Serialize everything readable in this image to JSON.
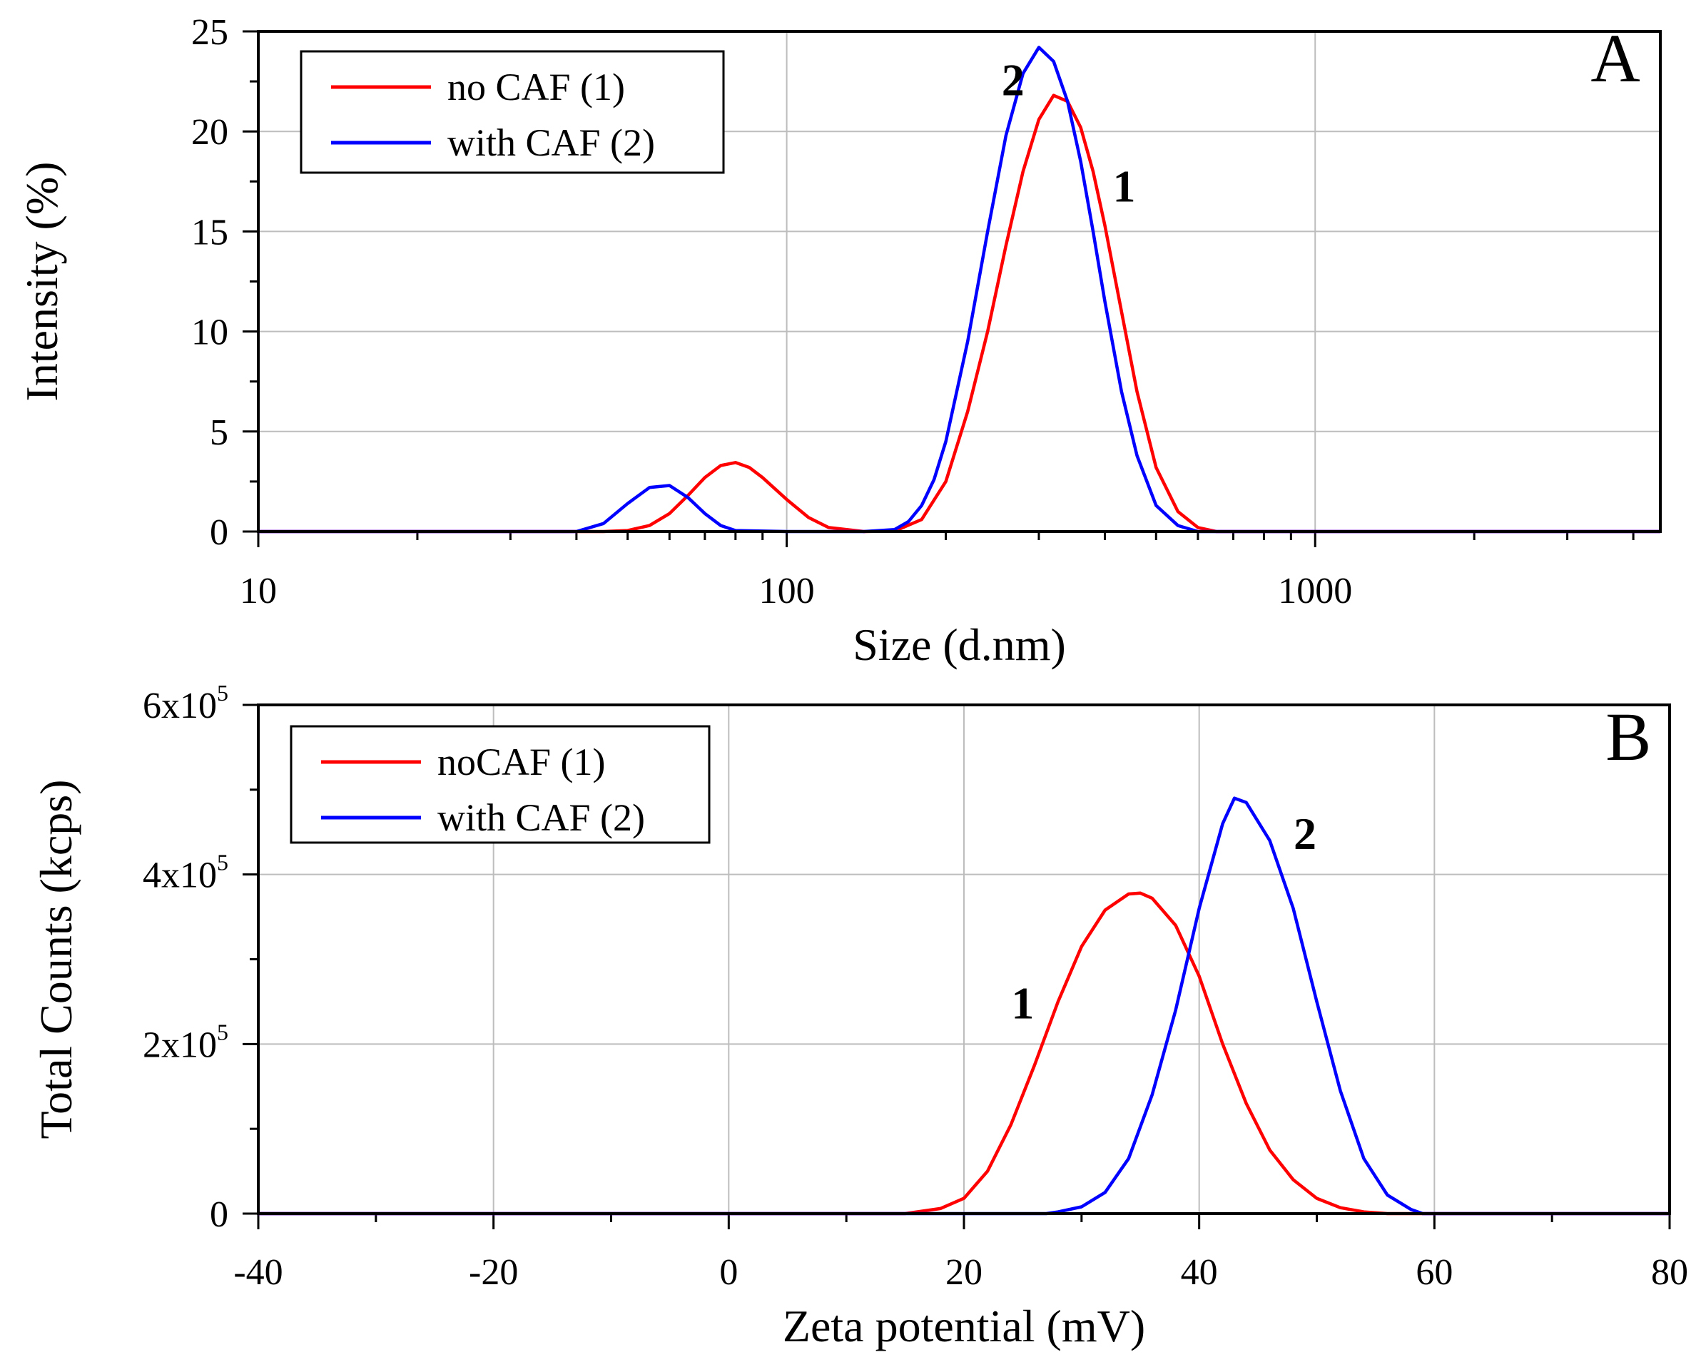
{
  "chart_data": [
    {
      "type": "line",
      "panel": "A",
      "xlabel": "Size (d.nm)",
      "ylabel": "Intensity (%)",
      "xscale": "log",
      "xlim": [
        10,
        4500
      ],
      "ylim": [
        0,
        25
      ],
      "xticks": [
        10,
        100,
        1000
      ],
      "xtick_labels": [
        "10",
        "100",
        "1000"
      ],
      "yticks": [
        0,
        5,
        10,
        15,
        20,
        25
      ],
      "ytick_labels": [
        "0",
        "5",
        "10",
        "15",
        "20",
        "25"
      ],
      "grid": true,
      "legend_position": "top-left",
      "series": [
        {
          "name": "no CAF (1)",
          "color": "#ff0000",
          "x": [
            10,
            45,
            50,
            55,
            60,
            65,
            70,
            75,
            80,
            85,
            90,
            100,
            110,
            120,
            140,
            160,
            180,
            200,
            220,
            240,
            260,
            280,
            300,
            320,
            340,
            360,
            380,
            400,
            430,
            460,
            500,
            550,
            600,
            650,
            1000,
            4500
          ],
          "y": [
            0,
            0,
            0.05,
            0.3,
            0.9,
            1.8,
            2.7,
            3.3,
            3.45,
            3.2,
            2.7,
            1.6,
            0.7,
            0.2,
            0,
            0.02,
            0.6,
            2.5,
            6.0,
            10.0,
            14.3,
            18.0,
            20.6,
            21.8,
            21.5,
            20.2,
            18.0,
            15.3,
            11.0,
            7.0,
            3.2,
            1.0,
            0.2,
            0,
            0,
            0
          ]
        },
        {
          "name": "with CAF (2)",
          "color": "#0000ff",
          "x": [
            10,
            40,
            45,
            50,
            55,
            60,
            65,
            70,
            75,
            80,
            100,
            140,
            160,
            170,
            180,
            190,
            200,
            220,
            240,
            260,
            280,
            300,
            320,
            340,
            360,
            380,
            400,
            430,
            460,
            500,
            550,
            600,
            1000,
            4500
          ],
          "y": [
            0,
            0,
            0.4,
            1.4,
            2.2,
            2.3,
            1.7,
            0.9,
            0.3,
            0.05,
            0,
            0,
            0.1,
            0.5,
            1.3,
            2.6,
            4.5,
            9.5,
            15.0,
            19.8,
            22.9,
            24.2,
            23.5,
            21.5,
            18.5,
            15.0,
            11.5,
            7.0,
            3.8,
            1.3,
            0.3,
            0,
            0,
            0
          ]
        }
      ],
      "annotations": [
        {
          "text": "A",
          "x": 3700,
          "y": 22.5
        },
        {
          "text": "2",
          "x": 268,
          "y": 21.8
        },
        {
          "text": "1",
          "x": 435,
          "y": 16.5
        }
      ]
    },
    {
      "type": "line",
      "panel": "B",
      "xlabel": "Zeta potential (mV)",
      "ylabel": "Total Counts (kcps)",
      "xscale": "linear",
      "xlim": [
        -40,
        80
      ],
      "ylim": [
        0,
        600000
      ],
      "xticks": [
        -40,
        -20,
        0,
        20,
        40,
        60,
        80
      ],
      "xtick_labels": [
        "-40",
        "-20",
        "0",
        "20",
        "40",
        "60",
        "80"
      ],
      "yticks": [
        0,
        200000,
        400000,
        600000
      ],
      "ytick_labels": [
        {
          "mantissa": "0",
          "exponent": ""
        },
        {
          "mantissa": "2x10",
          "exponent": "5"
        },
        {
          "mantissa": "4x10",
          "exponent": "5"
        },
        {
          "mantissa": "6x10",
          "exponent": "5"
        }
      ],
      "grid": true,
      "legend_position": "top-left",
      "series": [
        {
          "name": "noCAF (1)",
          "color": "#ff0000",
          "x": [
            -40,
            15,
            16,
            18,
            20,
            22,
            24,
            26,
            28,
            30,
            32,
            34,
            35,
            36,
            38,
            40,
            42,
            44,
            46,
            48,
            50,
            52,
            54,
            56,
            80
          ],
          "y": [
            0,
            0,
            2000,
            6000,
            18000,
            50000,
            105000,
            175000,
            250000,
            315000,
            358000,
            377000,
            378000,
            372000,
            340000,
            280000,
            200000,
            130000,
            75000,
            40000,
            18000,
            7000,
            2000,
            0,
            0
          ]
        },
        {
          "name": "with CAF (2)",
          "color": "#0000ff",
          "x": [
            -40,
            27,
            28,
            30,
            32,
            34,
            36,
            38,
            40,
            42,
            43,
            44,
            46,
            48,
            50,
            52,
            54,
            56,
            58,
            59,
            80
          ],
          "y": [
            0,
            0,
            2000,
            8000,
            25000,
            65000,
            140000,
            240000,
            360000,
            460000,
            490000,
            485000,
            440000,
            360000,
            250000,
            145000,
            65000,
            22000,
            5000,
            0,
            0
          ]
        }
      ],
      "annotations": [
        {
          "text": "B",
          "x": 76.5,
          "y": 535000
        },
        {
          "text": "2",
          "x": 49,
          "y": 430000
        },
        {
          "text": "1",
          "x": 25,
          "y": 230000
        }
      ]
    }
  ]
}
